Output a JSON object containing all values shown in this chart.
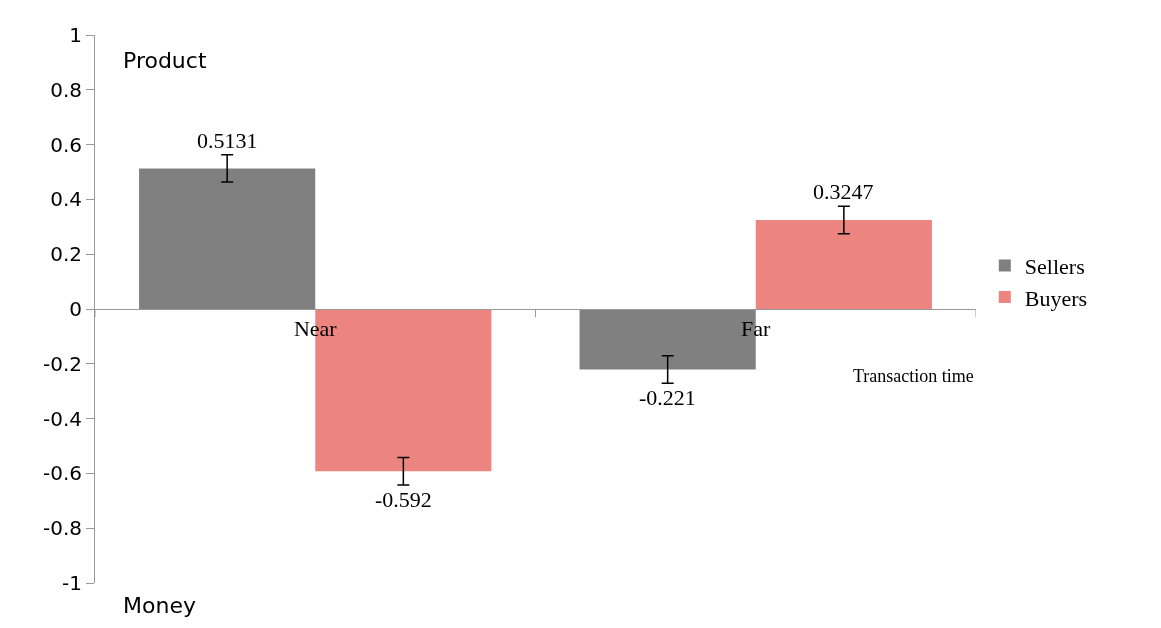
{
  "chart_data": {
    "type": "bar",
    "categories": [
      "Near",
      "Far"
    ],
    "series": [
      {
        "name": "Sellers",
        "color": "#808080",
        "values": [
          0.5131,
          -0.221
        ],
        "errors": [
          0.05,
          0.05
        ]
      },
      {
        "name": "Buyers",
        "color": "#ec8580",
        "values": [
          -0.592,
          0.3247
        ],
        "errors": [
          0.05,
          0.05
        ]
      }
    ],
    "xlabel": "Transaction time",
    "annotations": [
      "Product",
      "Money"
    ],
    "ylim": [
      -1,
      1
    ],
    "yticks": [
      1,
      0.8,
      0.6,
      0.4,
      0.2,
      0,
      -0.2,
      -0.4,
      -0.6,
      -0.8,
      -1
    ],
    "data_labels": true,
    "legend": "right"
  }
}
